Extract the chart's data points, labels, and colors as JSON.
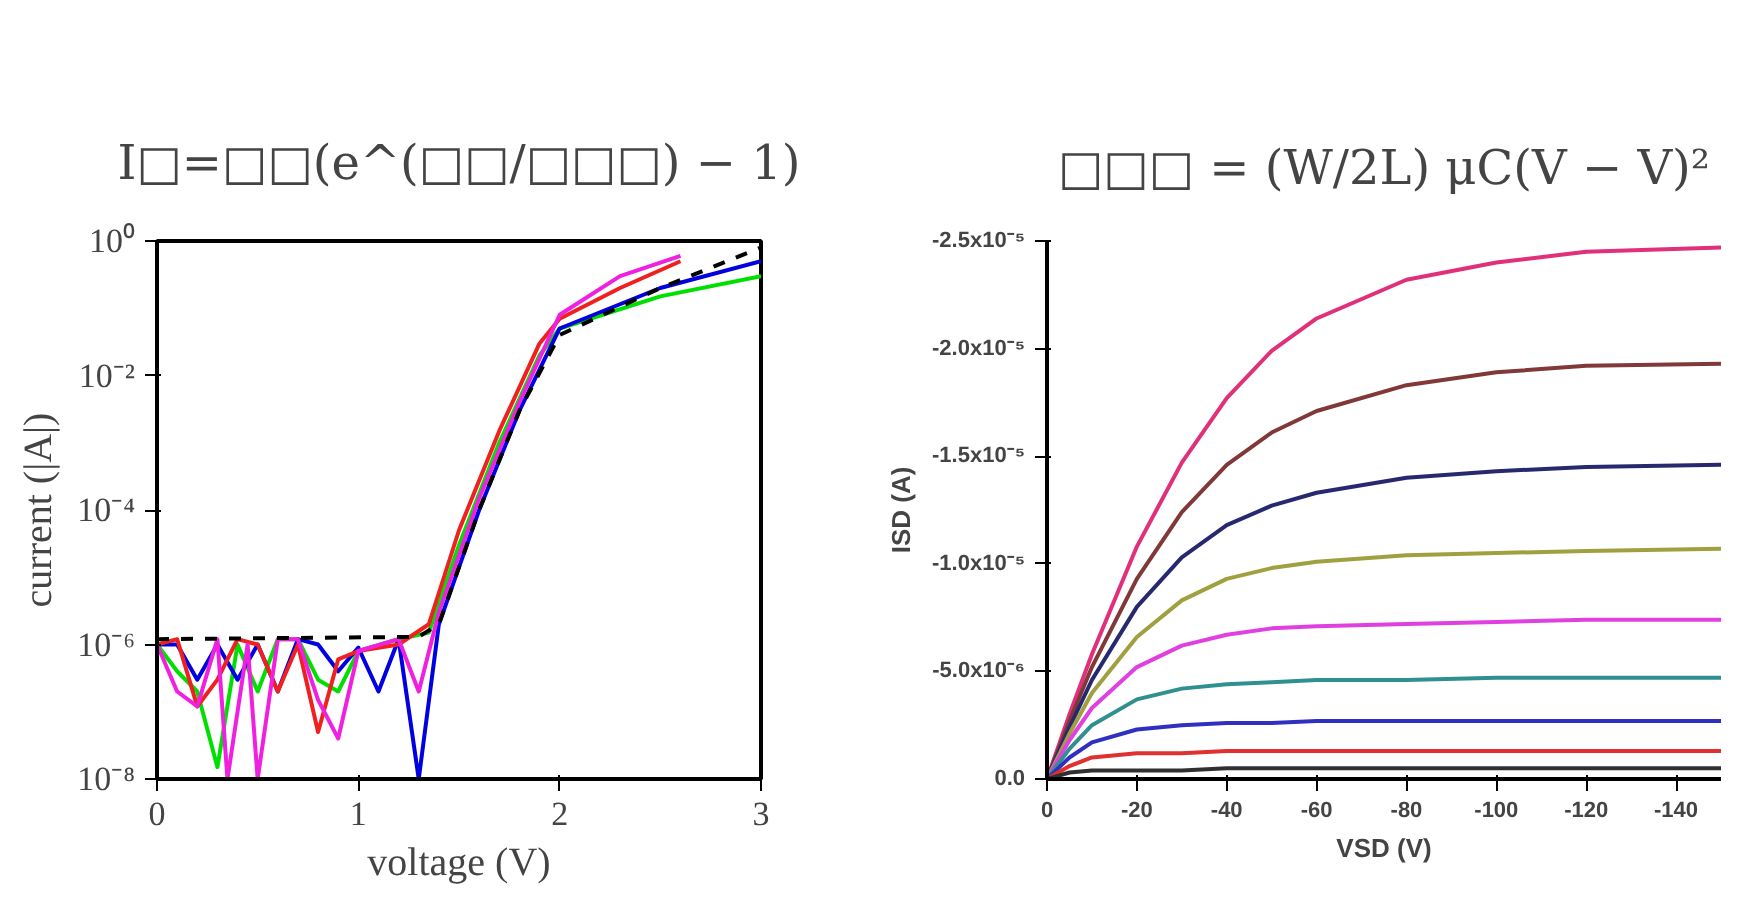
{
  "chart_data": [
    {
      "type": "line",
      "title": "I□=□□(e^(□□/□□□) − 1)",
      "xlabel": "voltage (V)",
      "ylabel": "current (|A|)",
      "log": "y",
      "xlim": [
        0,
        3
      ],
      "ylim": [
        1e-08,
        1
      ],
      "xticks": [
        0,
        1,
        2,
        3
      ],
      "yticks": [
        {
          "value": 1e-08,
          "label": "10⁻⁸"
        },
        {
          "value": 1e-06,
          "label": "10⁻⁶"
        },
        {
          "value": 0.0001,
          "label": "10⁻⁴"
        },
        {
          "value": 0.01,
          "label": "10⁻²"
        },
        {
          "value": 1,
          "label": "10⁰"
        }
      ],
      "grid": false,
      "series": [
        {
          "color": "#00e000",
          "x": [
            0,
            0.1,
            0.2,
            0.3,
            0.4,
            0.5,
            0.6,
            0.7,
            0.8,
            0.9,
            1.0,
            1.2,
            1.35,
            1.5,
            1.7,
            1.9,
            2.0,
            2.5,
            3.0
          ],
          "values": [
            1e-06,
            4e-07,
            2e-07,
            1.5e-08,
            1e-06,
            2e-07,
            1.2e-06,
            1.2e-06,
            3e-07,
            2e-07,
            8e-07,
            1.2e-06,
            1.5e-06,
            3e-05,
            0.001,
            0.02,
            0.05,
            0.15,
            0.3
          ]
        },
        {
          "color": "#0000e0",
          "x": [
            0,
            0.1,
            0.2,
            0.3,
            0.4,
            0.5,
            0.6,
            0.7,
            0.8,
            0.9,
            1.0,
            1.1,
            1.2,
            1.3,
            1.4,
            1.6,
            1.8,
            2.0,
            2.5,
            3.0
          ],
          "values": [
            1e-06,
            1e-06,
            3e-07,
            1e-06,
            3e-07,
            1e-06,
            2e-07,
            1.2e-06,
            1e-06,
            4e-07,
            9e-07,
            2e-07,
            1.2e-06,
            1e-08,
            2e-06,
            0.0001,
            0.003,
            0.05,
            0.2,
            0.5
          ]
        },
        {
          "color": "#f02020",
          "x": [
            0,
            0.1,
            0.2,
            0.3,
            0.4,
            0.5,
            0.6,
            0.7,
            0.8,
            0.9,
            1.0,
            1.2,
            1.35,
            1.5,
            1.7,
            1.9,
            2.0,
            2.3,
            2.6
          ],
          "values": [
            1e-06,
            1.2e-06,
            1.2e-07,
            3e-07,
            1.2e-06,
            1e-06,
            2e-07,
            1e-06,
            5e-08,
            6e-07,
            8e-07,
            1e-06,
            2e-06,
            5e-05,
            0.0015,
            0.03,
            0.07,
            0.2,
            0.5
          ]
        },
        {
          "color": "#f020e0",
          "x": [
            0,
            0.1,
            0.2,
            0.3,
            0.35,
            0.45,
            0.5,
            0.6,
            0.7,
            0.8,
            0.9,
            1.0,
            1.2,
            1.3,
            1.4,
            1.6,
            1.8,
            2.0,
            2.3,
            2.6
          ],
          "values": [
            1e-06,
            2e-07,
            1.2e-07,
            1.2e-06,
            1e-08,
            1e-06,
            1e-08,
            1.2e-06,
            1.2e-06,
            1.5e-07,
            4e-08,
            8e-07,
            1.2e-06,
            2e-07,
            3e-06,
            0.00015,
            0.004,
            0.08,
            0.3,
            0.6
          ]
        },
        {
          "color": "#000000",
          "line_style": "dashed",
          "x": [
            0,
            1.3,
            1.4,
            1.6,
            1.8,
            2.0,
            2.5,
            3.0
          ],
          "values": [
            1.2e-06,
            1.3e-06,
            2e-06,
            0.0001,
            0.003,
            0.04,
            0.2,
            0.8
          ]
        }
      ]
    },
    {
      "type": "line",
      "title": "□□□ = (W/2L) μC(V − V)²",
      "xlabel": "VSD (V)",
      "ylabel": "ISD (A)",
      "xlim": [
        0,
        -150
      ],
      "ylim": [
        0,
        -2.5e-05
      ],
      "xticks": [
        0,
        -20,
        -40,
        -60,
        -80,
        -100,
        -120,
        -140
      ],
      "yticks": [
        {
          "value": 0,
          "label": "0.0"
        },
        {
          "value": -5e-06,
          "label": "-5.0x10⁻⁶"
        },
        {
          "value": -1e-05,
          "label": "-1.0x10⁻⁵"
        },
        {
          "value": -1.5e-05,
          "label": "-1.5x10⁻⁵"
        },
        {
          "value": -2e-05,
          "label": "-2.0x10⁻⁵"
        },
        {
          "value": -2.5e-05,
          "label": "-2.5x10⁻⁵"
        }
      ],
      "grid": false,
      "x": [
        0,
        -5,
        -10,
        -20,
        -30,
        -40,
        -50,
        -60,
        -80,
        -100,
        -120,
        -150
      ],
      "series": [
        {
          "color": "#e0307a",
          "values": [
            0,
            -3e-06,
            -5.8e-06,
            -1.08e-05,
            -1.47e-05,
            -1.77e-05,
            -1.99e-05,
            -2.14e-05,
            -2.32e-05,
            -2.4e-05,
            -2.45e-05,
            -2.47e-05
          ]
        },
        {
          "color": "#803838",
          "values": [
            0,
            -2.7e-06,
            -5.2e-06,
            -9.3e-06,
            -1.24e-05,
            -1.46e-05,
            -1.61e-05,
            -1.71e-05,
            -1.83e-05,
            -1.89e-05,
            -1.92e-05,
            -1.93e-05
          ]
        },
        {
          "color": "#282870",
          "values": [
            0,
            -2.4e-06,
            -4.6e-06,
            -8e-06,
            -1.03e-05,
            -1.18e-05,
            -1.27e-05,
            -1.33e-05,
            -1.4e-05,
            -1.43e-05,
            -1.45e-05,
            -1.46e-05
          ]
        },
        {
          "color": "#a0a040",
          "values": [
            0,
            -2.1e-06,
            -4e-06,
            -6.6e-06,
            -8.3e-06,
            -9.3e-06,
            -9.8e-06,
            -1.01e-05,
            -1.04e-05,
            -1.05e-05,
            -1.06e-05,
            -1.07e-05
          ]
        },
        {
          "color": "#e040e0",
          "values": [
            0,
            -1.8e-06,
            -3.3e-06,
            -5.2e-06,
            -6.2e-06,
            -6.7e-06,
            -7e-06,
            -7.1e-06,
            -7.2e-06,
            -7.3e-06,
            -7.4e-06,
            -7.4e-06
          ]
        },
        {
          "color": "#309090",
          "values": [
            0,
            -1.4e-06,
            -2.5e-06,
            -3.7e-06,
            -4.2e-06,
            -4.4e-06,
            -4.5e-06,
            -4.6e-06,
            -4.6e-06,
            -4.7e-06,
            -4.7e-06,
            -4.7e-06
          ]
        },
        {
          "color": "#3030c0",
          "values": [
            0,
            -1e-06,
            -1.7e-06,
            -2.3e-06,
            -2.5e-06,
            -2.6e-06,
            -2.6e-06,
            -2.7e-06,
            -2.7e-06,
            -2.7e-06,
            -2.7e-06,
            -2.7e-06
          ]
        },
        {
          "color": "#e03030",
          "values": [
            0,
            -6e-07,
            -1e-06,
            -1.2e-06,
            -1.2e-06,
            -1.3e-06,
            -1.3e-06,
            -1.3e-06,
            -1.3e-06,
            -1.3e-06,
            -1.3e-06,
            -1.3e-06
          ]
        },
        {
          "color": "#303030",
          "values": [
            0,
            -3e-07,
            -4e-07,
            -4e-07,
            -4e-07,
            -5e-07,
            -5e-07,
            -5e-07,
            -5e-07,
            -5e-07,
            -5e-07,
            -5e-07
          ]
        }
      ]
    }
  ]
}
